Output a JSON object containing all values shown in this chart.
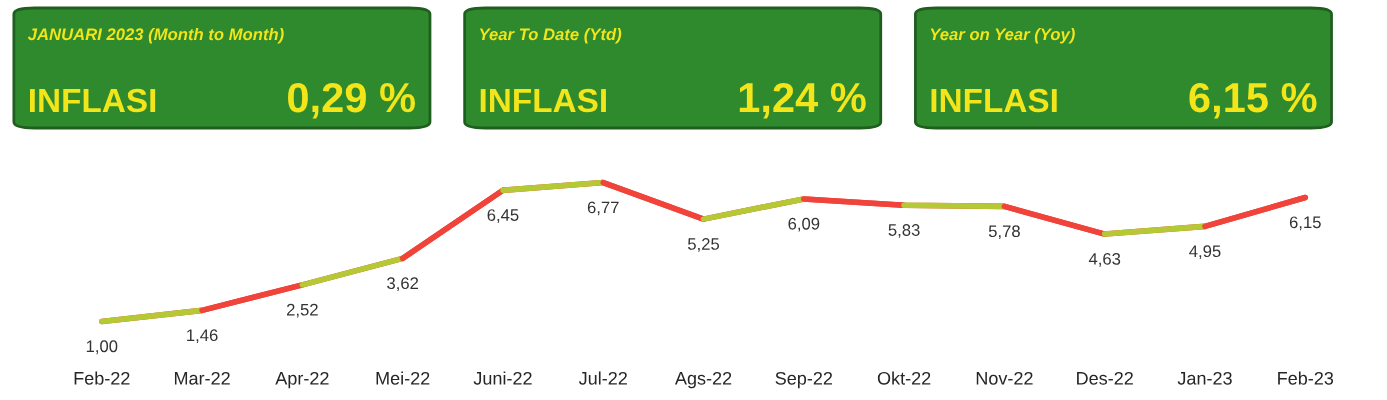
{
  "chart_data": {
    "type": "line",
    "categories": [
      "Feb-22",
      "Mar-22",
      "Apr-22",
      "Mei-22",
      "Juni-22",
      "Jul-22",
      "Ags-22",
      "Sep-22",
      "Okt-22",
      "Nov-22",
      "Des-22",
      "Jan-23",
      "Feb-23"
    ],
    "series": [
      {
        "color": "#f0433a",
        "colors": [
          "#b5c934",
          "#f0433a",
          "#b5c934",
          "#f0433a",
          "#b5c934",
          "#f0433a",
          "#b5c934",
          "#f0433a",
          "#b5c934",
          "#f0433a",
          "#b5c934",
          "#f0433a",
          "#f0433a"
        ],
        "values": [
          1.0,
          1.46,
          2.52,
          3.62,
          6.45,
          6.77,
          5.25,
          6.09,
          5.83,
          5.78,
          4.63,
          4.95,
          6.15
        ],
        "value_labels": [
          "1,00",
          "1,46",
          "2,52",
          "3,62",
          "6,45",
          "6,77",
          "5,25",
          "6,09",
          "5,83",
          "5,78",
          "4,63",
          "4,95",
          "6,15"
        ]
      }
    ],
    "annotations": [
      "JANUARI 2023 (Month to Month)",
      "INFLASI",
      "0,29 %",
      "Year To Date (Ytd)",
      "INFLASI",
      "1,24 %",
      "Year on Year (Yoy)",
      "INFLASI",
      "6,15 %"
    ],
    "grid": false,
    "legend": false
  }
}
